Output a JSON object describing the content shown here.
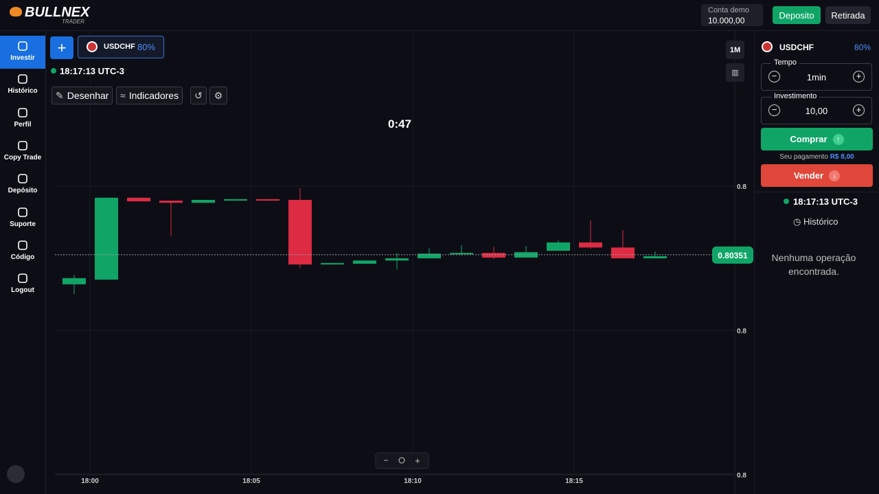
{
  "header": {
    "logo": "BULLNEX",
    "logo_sub": "TRADER",
    "account_label": "Conta demo",
    "balance": "10.000,00",
    "deposit_button": "Deposito",
    "withdraw_button": "Retirada"
  },
  "sidebar": {
    "items": [
      "Investir",
      "Histórico",
      "Perfil",
      "Copy Trade",
      "Depósito",
      "Suporte",
      "Código",
      "Logout"
    ]
  },
  "toolbar": {
    "asset": "USDCHF",
    "payout": "80%",
    "clock": "18:17:13 UTC-3",
    "draw": "Desenhar",
    "indicators": "Indicadores",
    "timeframe": "1M"
  },
  "chart_data": {
    "type": "candlestick",
    "countdown": "0:47",
    "current_price": 0.80351,
    "up_color": "#10a567",
    "down_color": "#dc2b43",
    "categories": [
      null,
      null,
      null,
      null,
      null,
      null,
      null,
      null,
      null,
      null,
      null,
      null,
      null,
      null,
      null,
      null,
      null,
      null,
      null
    ],
    "candles": [
      {
        "open": 0.803428,
        "high": 0.803454,
        "low": 0.803401,
        "close": 0.803445
      },
      {
        "open": 0.803441,
        "high": 0.803668,
        "low": 0.803441,
        "close": 0.803668
      },
      {
        "open": 0.803668,
        "high": 0.803668,
        "low": 0.803658,
        "close": 0.803658
      },
      {
        "open": 0.80366,
        "high": 0.80366,
        "low": 0.803563,
        "close": 0.803654
      },
      {
        "open": 0.803654,
        "high": 0.803662,
        "low": 0.803654,
        "close": 0.803662
      },
      {
        "open": 0.80366,
        "high": 0.803664,
        "low": 0.80366,
        "close": 0.803664
      },
      {
        "open": 0.803664,
        "high": 0.803664,
        "low": 0.80366,
        "close": 0.80366
      },
      {
        "open": 0.803662,
        "high": 0.803694,
        "low": 0.803473,
        "close": 0.803483
      },
      {
        "open": 0.803483,
        "high": 0.803487,
        "low": 0.803483,
        "close": 0.803487
      },
      {
        "open": 0.803485,
        "high": 0.803494,
        "low": 0.803485,
        "close": 0.803494
      },
      {
        "open": 0.803494,
        "high": 0.803515,
        "low": 0.803469,
        "close": 0.8035
      },
      {
        "open": 0.8035,
        "high": 0.803529,
        "low": 0.8035,
        "close": 0.803513
      },
      {
        "open": 0.803511,
        "high": 0.803536,
        "low": 0.803508,
        "close": 0.803515
      },
      {
        "open": 0.803515,
        "high": 0.803532,
        "low": 0.803498,
        "close": 0.803502
      },
      {
        "open": 0.803502,
        "high": 0.803534,
        "low": 0.803502,
        "close": 0.803517
      },
      {
        "open": 0.803521,
        "high": 0.80355,
        "low": 0.803521,
        "close": 0.803544
      },
      {
        "open": 0.803544,
        "high": 0.803605,
        "low": 0.803527,
        "close": 0.80353
      },
      {
        "open": 0.80353,
        "high": 0.803578,
        "low": 0.8035,
        "close": 0.8035
      },
      {
        "open": 0.8035,
        "high": 0.803519,
        "low": 0.8035,
        "close": 0.803506
      }
    ],
    "x_labels": [
      "18:00",
      "18:05",
      "18:10",
      "18:15"
    ],
    "ylim": [
      0.8029,
      0.8041
    ],
    "yticks": [
      {
        "value": 0.8037,
        "label": "0.8"
      },
      {
        "value": 0.8033,
        "label": "0.8"
      },
      {
        "value": 0.8029,
        "label": "0.8"
      }
    ],
    "grid": true
  },
  "panel": {
    "asset": "USDCHF",
    "payout": "80%",
    "time_label": "Tempo",
    "time_value": "1min",
    "investment_label": "Investimento",
    "investment_value": "10,00",
    "buy_button": "Comprar",
    "payout_label": "Seu pagamento",
    "payout_value": "R$ 8,00",
    "sell_button": "Vender",
    "clock": "18:17:13 UTC-3",
    "history": "Histórico",
    "empty_message": "Nenhuma operação encontrada."
  }
}
